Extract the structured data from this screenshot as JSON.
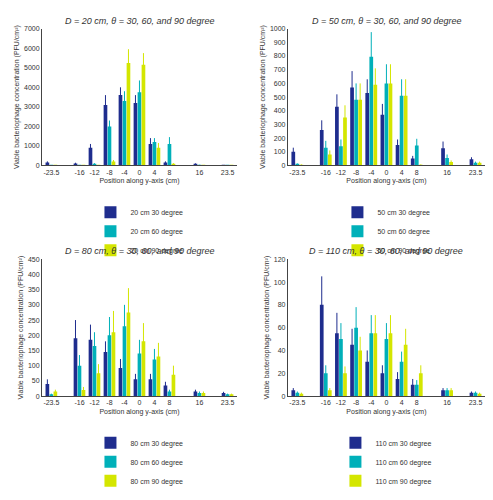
{
  "chart_data": [
    {
      "type": "bar",
      "title": "D = 20 cm, θ = 30, 60, and 90 degree",
      "xlabel": "Position along y-axis (cm)",
      "ylabel": "Viable bacteriophage concentration (PFU/cm²)",
      "x": [
        -23.5,
        -16,
        -12,
        -8,
        -4,
        0,
        4,
        8,
        16,
        23.5
      ],
      "xlim": [
        -26,
        26
      ],
      "xticks": [
        -23.5,
        -16,
        -12,
        -8,
        -4,
        0,
        4,
        8,
        16,
        23.5
      ],
      "ylim": [
        0,
        7000
      ],
      "yticks": [
        0,
        1000,
        2000,
        3000,
        4000,
        5000,
        6000,
        7000
      ],
      "grid": false,
      "legend": "bottom",
      "series": [
        {
          "name": "20 cm 30 degree",
          "color": "#1f2d8e",
          "values": [
            150,
            100,
            900,
            3100,
            3600,
            3200,
            1100,
            150,
            80,
            5
          ],
          "errors": [
            60,
            40,
            200,
            500,
            400,
            400,
            300,
            60,
            30,
            3
          ]
        },
        {
          "name": "20 cm 60 degree",
          "color": "#00b0b9",
          "values": [
            10,
            10,
            80,
            2000,
            3300,
            3750,
            1200,
            1100,
            20,
            5
          ],
          "errors": [
            5,
            5,
            40,
            300,
            500,
            600,
            200,
            350,
            15,
            3
          ]
        },
        {
          "name": "20 cm 90 degree",
          "color": "#d4e600",
          "values": [
            3,
            3,
            3,
            200,
            5250,
            5150,
            900,
            80,
            3,
            3
          ],
          "errors": [
            2,
            2,
            2,
            80,
            700,
            600,
            250,
            40,
            2,
            2
          ]
        }
      ]
    },
    {
      "type": "bar",
      "title": "D = 50 cm, θ = 30, 60, and 90 degree",
      "xlabel": "Position along y-axis (cm)",
      "ylabel": "Viable bacteriophage concentration (PFU/cm²)",
      "x": [
        -23.5,
        -16,
        -12,
        -8,
        -4,
        0,
        4,
        8,
        16,
        23.5
      ],
      "xlim": [
        -26,
        26
      ],
      "xticks": [
        -23.5,
        -16,
        -12,
        -8,
        -4,
        0,
        4,
        8,
        16,
        23.5
      ],
      "ylim": [
        0,
        1000
      ],
      "yticks": [
        0,
        100,
        200,
        300,
        400,
        500,
        600,
        700,
        800,
        900,
        1000
      ],
      "grid": false,
      "legend": "bottom",
      "series": [
        {
          "name": "50 cm 30 degree",
          "color": "#1f2d8e",
          "values": [
            100,
            260,
            430,
            570,
            530,
            370,
            150,
            50,
            125,
            45
          ],
          "errors": [
            30,
            70,
            90,
            120,
            100,
            80,
            40,
            20,
            50,
            15
          ]
        },
        {
          "name": "50 cm 60 degree",
          "color": "#00b0b9",
          "values": [
            10,
            130,
            140,
            480,
            795,
            600,
            510,
            145,
            55,
            20
          ],
          "errors": [
            5,
            50,
            50,
            120,
            180,
            140,
            120,
            50,
            25,
            8
          ]
        },
        {
          "name": "50 cm 90 degree",
          "color": "#d4e600",
          "values": [
            5,
            80,
            350,
            480,
            590,
            600,
            510,
            5,
            25,
            20
          ],
          "errors": [
            3,
            30,
            90,
            120,
            120,
            140,
            120,
            3,
            12,
            8
          ]
        }
      ]
    },
    {
      "type": "bar",
      "title": "D = 80 cm, θ = 30, 60, and 90 degree",
      "xlabel": "Position along y-axis (cm)",
      "ylabel": "Viable bacteriophage concentration (PFU/cm²)",
      "x": [
        -23.5,
        -16,
        -12,
        -8,
        -4,
        0,
        4,
        8,
        16,
        23.5
      ],
      "xlim": [
        -26,
        26
      ],
      "xticks": [
        -23.5,
        -16,
        -12,
        -8,
        -4,
        0,
        4,
        8,
        16,
        23.5
      ],
      "ylim": [
        0,
        450
      ],
      "yticks": [
        0,
        50,
        100,
        150,
        200,
        250,
        300,
        350,
        400,
        450
      ],
      "grid": false,
      "legend": "bottom",
      "series": [
        {
          "name": "80 cm 30 degree",
          "color": "#1f2d8e",
          "values": [
            40,
            190,
            185,
            145,
            92,
            55,
            55,
            35,
            15,
            10
          ],
          "errors": [
            15,
            60,
            50,
            35,
            30,
            18,
            18,
            12,
            6,
            4
          ]
        },
        {
          "name": "80 cm 60 degree",
          "color": "#00b0b9",
          "values": [
            5,
            100,
            165,
            200,
            230,
            140,
            120,
            15,
            10,
            5
          ],
          "errors": [
            3,
            35,
            45,
            60,
            70,
            45,
            35,
            6,
            5,
            3
          ]
        },
        {
          "name": "80 cm 90 degree",
          "color": "#d4e600",
          "values": [
            15,
            20,
            75,
            210,
            275,
            180,
            130,
            70,
            10,
            5
          ],
          "errors": [
            6,
            10,
            30,
            70,
            80,
            60,
            45,
            30,
            5,
            3
          ]
        }
      ]
    },
    {
      "type": "bar",
      "title": "D = 110 cm, θ = 30, 60, and 90 degree",
      "xlabel": "Position along y-axis (cm)",
      "ylabel": "Viable bacteriophage concentration (PFU/cm²)",
      "x": [
        -23.5,
        -16,
        -12,
        -8,
        -4,
        0,
        4,
        8,
        16,
        23.5
      ],
      "xlim": [
        -26,
        26
      ],
      "xticks": [
        -23.5,
        -16,
        -12,
        -8,
        -4,
        0,
        4,
        8,
        16,
        23.5
      ],
      "ylim": [
        0,
        120
      ],
      "yticks": [
        0,
        20,
        40,
        60,
        80,
        100,
        120
      ],
      "grid": false,
      "legend": "bottom",
      "series": [
        {
          "name": "110 cm 30 degree",
          "color": "#1f2d8e",
          "values": [
            5,
            80,
            55,
            45,
            30,
            20,
            15,
            10,
            5,
            3
          ],
          "errors": [
            2,
            25,
            18,
            14,
            10,
            7,
            6,
            5,
            2,
            1
          ]
        },
        {
          "name": "110 cm 60 degree",
          "color": "#00b0b9",
          "values": [
            3,
            20,
            50,
            60,
            55,
            50,
            30,
            10,
            5,
            3
          ],
          "errors": [
            1,
            7,
            14,
            18,
            16,
            14,
            9,
            4,
            2,
            1
          ]
        },
        {
          "name": "110 cm 90 degree",
          "color": "#d4e600",
          "values": [
            2,
            5,
            20,
            40,
            55,
            55,
            45,
            20,
            5,
            2
          ],
          "errors": [
            1,
            2,
            6,
            12,
            16,
            16,
            14,
            7,
            2,
            1
          ]
        }
      ]
    }
  ]
}
